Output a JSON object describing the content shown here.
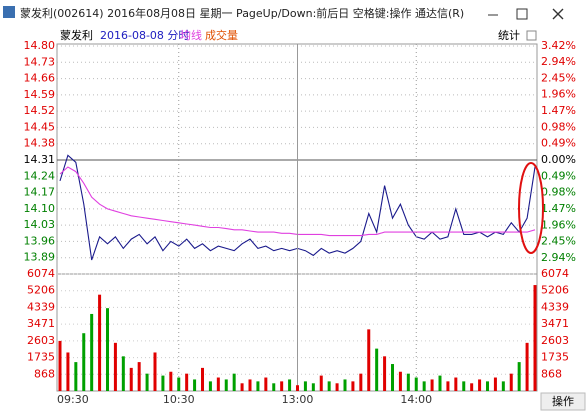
{
  "window": {
    "title": "蒙发利(002614) 2016年08月08日 星期一 PageUp/Down:前后日 空格键:操作 通达信(R)"
  },
  "header": {
    "name": "蒙发利",
    "date_mode": "2016-08-08 分时",
    "stats_button": "统计"
  },
  "footer": {
    "button": "操作"
  },
  "chart_data": [
    {
      "type": "line",
      "x": [
        0,
        4,
        8,
        12,
        16,
        20,
        24,
        28,
        32,
        36,
        40,
        44,
        48,
        52,
        56,
        60,
        64,
        68,
        72,
        76,
        80,
        84,
        88,
        92,
        96,
        100,
        104,
        108,
        112,
        116,
        120,
        124,
        128,
        132,
        136,
        140,
        144,
        148,
        152,
        156,
        160,
        164,
        168,
        172,
        176,
        180,
        184,
        188,
        192,
        196,
        200,
        204,
        208,
        212,
        216,
        220,
        224,
        228,
        232,
        236,
        240
      ],
      "series": [
        {
          "color": "#1a1a8c",
          "values": [
            14.22,
            14.33,
            14.3,
            14.12,
            13.88,
            13.98,
            13.95,
            13.98,
            13.93,
            13.97,
            13.99,
            13.95,
            13.98,
            13.92,
            13.96,
            13.94,
            13.97,
            13.93,
            13.95,
            13.92,
            13.94,
            13.93,
            13.92,
            13.95,
            13.97,
            13.93,
            13.94,
            13.92,
            13.93,
            13.92,
            13.93,
            13.92,
            13.9,
            13.93,
            13.91,
            13.92,
            13.91,
            13.93,
            13.96,
            14.08,
            14.0,
            14.2,
            14.06,
            14.12,
            14.03,
            13.98,
            13.97,
            14.0,
            13.97,
            13.98,
            14.1,
            13.99,
            13.99,
            14.0,
            13.98,
            14.0,
            13.99,
            14.04,
            14.0,
            14.06,
            14.28
          ]
        },
        {
          "name": "均线",
          "color": "#e040e0",
          "values": [
            14.25,
            14.28,
            14.26,
            14.21,
            14.15,
            14.12,
            14.1,
            14.09,
            14.08,
            14.07,
            14.065,
            14.06,
            14.055,
            14.05,
            14.045,
            14.04,
            14.035,
            14.03,
            14.025,
            14.02,
            14.02,
            14.015,
            14.01,
            14.01,
            14.005,
            14.0,
            14.0,
            14.0,
            13.995,
            13.995,
            13.99,
            13.99,
            13.99,
            13.99,
            13.985,
            13.985,
            13.985,
            13.985,
            13.985,
            13.99,
            13.99,
            14.0,
            14.0,
            14.0,
            14.0,
            14.0,
            14.0,
            14.0,
            14.0,
            14.0,
            14.0,
            14.0,
            14.0,
            14.0,
            14.0,
            14.0,
            14.0,
            14.0,
            14.0,
            14.0,
            14.01
          ]
        }
      ],
      "xlim": [
        0,
        240
      ],
      "ylim": [
        13.82,
        14.8
      ],
      "yticks": [
        {
          "value": 14.8,
          "label": "14.80"
        },
        {
          "value": 14.73,
          "label": "14.73"
        },
        {
          "value": 14.66,
          "label": "14.66"
        },
        {
          "value": 14.59,
          "label": "14.59"
        },
        {
          "value": 14.52,
          "label": "14.52"
        },
        {
          "value": 14.45,
          "label": "14.45"
        },
        {
          "value": 14.38,
          "label": "14.38"
        },
        {
          "value": 14.31,
          "label": "14.31"
        },
        {
          "value": 14.24,
          "label": "14.24"
        },
        {
          "value": 14.17,
          "label": "14.17"
        },
        {
          "value": 14.1,
          "label": "14.10"
        },
        {
          "value": 14.03,
          "label": "14.03"
        },
        {
          "value": 13.96,
          "label": "13.96"
        },
        {
          "value": 13.89,
          "label": "13.89"
        }
      ],
      "y2lim": [
        -3.42,
        3.42
      ],
      "y2ticks": [
        {
          "value": 3.42,
          "label": "3.42%"
        },
        {
          "value": 2.94,
          "label": "2.94%"
        },
        {
          "value": 2.45,
          "label": "2.45%"
        },
        {
          "value": 1.96,
          "label": "1.96%"
        },
        {
          "value": 1.47,
          "label": "1.47%"
        },
        {
          "value": 0.98,
          "label": "0.98%"
        },
        {
          "value": 0.49,
          "label": "0.49%"
        },
        {
          "value": 0,
          "label": "0.00%"
        },
        {
          "value": -0.49,
          "label": "0.49%"
        },
        {
          "value": -0.98,
          "label": "0.98%"
        },
        {
          "value": -1.47,
          "label": "1.47%"
        },
        {
          "value": -1.96,
          "label": "1.96%"
        },
        {
          "value": -2.45,
          "label": "2.45%"
        },
        {
          "value": -2.94,
          "label": "2.94%"
        }
      ],
      "up_color": "#e00000",
      "down_color": "#008000",
      "flat_color": "#000000",
      "grid": true
    },
    {
      "type": "bar",
      "series": [
        {
          "name": "成交量",
          "values": [
            2600,
            2000,
            1500,
            3000,
            4000,
            5000,
            4300,
            2500,
            1800,
            1200,
            1500,
            900,
            2000,
            800,
            1000,
            700,
            900,
            600,
            1200,
            500,
            700,
            600,
            900,
            400,
            600,
            500,
            700,
            400,
            500,
            600,
            300,
            500,
            400,
            800,
            500,
            400,
            600,
            500,
            900,
            3200,
            2200,
            1800,
            1400,
            1000,
            900,
            700,
            500,
            600,
            800,
            500,
            700,
            500,
            400,
            600,
            500,
            700,
            500,
            900,
            1500,
            2500,
            5500
          ]
        }
      ],
      "xlim": [
        0,
        240
      ],
      "xticks": [
        {
          "value": 0,
          "label": "09:30"
        },
        {
          "value": 60,
          "label": "10:30"
        },
        {
          "value": 120,
          "label": "13:00"
        },
        {
          "value": 180,
          "label": "14:00"
        }
      ],
      "ylim": [
        0,
        6074
      ],
      "yticks": [
        6074,
        5206,
        4339,
        3471,
        2603,
        1735,
        868
      ],
      "up_color": "#e00000",
      "down_color": "#00a000"
    }
  ]
}
